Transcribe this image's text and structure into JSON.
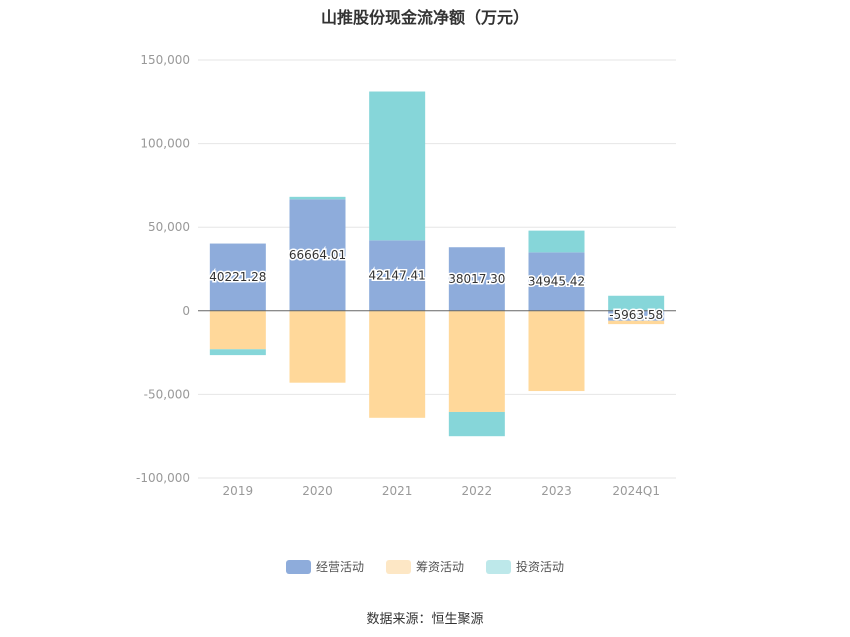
{
  "chart_data": {
    "type": "bar",
    "stacked": true,
    "title": "山推股份现金流净额（万元）",
    "categories": [
      "2019",
      "2020",
      "2021",
      "2022",
      "2023",
      "2024Q1"
    ],
    "ylim": [
      -100000,
      150000
    ],
    "yticks": [
      150000,
      100000,
      50000,
      0,
      -50000,
      -100000
    ],
    "ytick_labels": [
      "150,000",
      "100,000",
      "50,000",
      "0",
      "-50,000",
      "-100,000"
    ],
    "grid": true,
    "legend_position": "bottom",
    "series": [
      {
        "name": "经营活动",
        "color": "#8eacdb",
        "values": [
          40221.28,
          66664.01,
          42147.41,
          38017.3,
          34945.42,
          -5963.58
        ],
        "labels": [
          "40221.28",
          "66664.01",
          "42147.41",
          "38017.30",
          "34945.42",
          "-5963.58"
        ]
      },
      {
        "name": "筹资活动",
        "color": "#ffd89a",
        "values": [
          -23000,
          -43000,
          -64000,
          -60500,
          -48000,
          -2000
        ]
      },
      {
        "name": "投资活动",
        "color": "#86d6d9",
        "values": [
          -3500,
          1500,
          89000,
          -14500,
          13000,
          9000
        ]
      }
    ]
  },
  "legend": {
    "swatch_colors": [
      "#8eacdb",
      "#fde7c5",
      "#bde8ea"
    ]
  },
  "footer": {
    "source": "数据来源：恒生聚源"
  }
}
